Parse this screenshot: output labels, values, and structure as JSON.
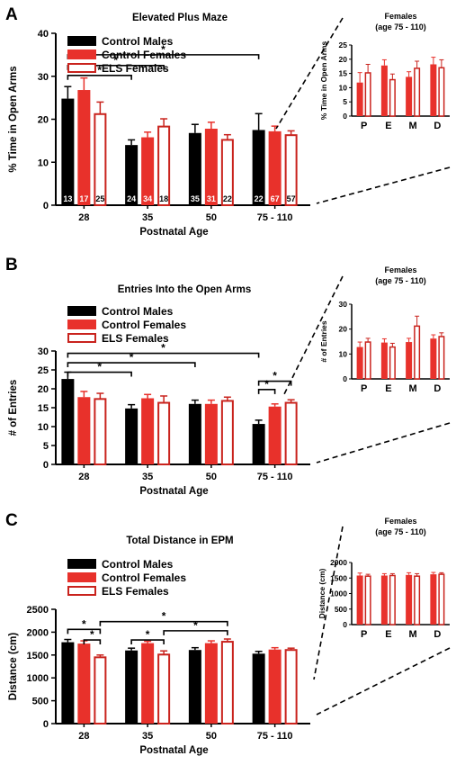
{
  "colors": {
    "control_males": "#000000",
    "control_females": "#e8312b",
    "els_females_edge": "#c9231d",
    "els_females_fill": "#ffffff",
    "axis": "#000000"
  },
  "legend": [
    "Control Males",
    "Control Females",
    "ELS Females"
  ],
  "chart_data": [
    {
      "panel": "A",
      "type": "bar",
      "title": "Elevated Plus Maze",
      "xlabel": "Postnatal Age",
      "ylabel": "% Time in Open Arms",
      "ylim": [
        0,
        40
      ],
      "yticks": [
        0,
        10,
        20,
        30,
        40
      ],
      "categories": [
        "28",
        "35",
        "50",
        "75 - 110"
      ],
      "series": [
        {
          "name": "Control Males",
          "values": [
            24.8,
            14.0,
            16.8,
            17.5
          ],
          "errors": [
            2.8,
            1.2,
            2.0,
            3.8
          ],
          "n": [
            "13",
            "24",
            "35",
            "22"
          ]
        },
        {
          "name": "Control Females",
          "values": [
            26.8,
            15.8,
            17.8,
            17.2
          ],
          "errors": [
            2.8,
            1.2,
            1.5,
            1.2
          ],
          "n": [
            "17",
            "34",
            "31",
            "67"
          ]
        },
        {
          "name": "ELS Females",
          "values": [
            21.2,
            18.3,
            15.2,
            16.3
          ],
          "errors": [
            2.8,
            1.8,
            1.2,
            1.0
          ],
          "n": [
            "25",
            "18",
            "22",
            "57"
          ]
        }
      ],
      "significance": [
        {
          "label": "*",
          "from": [
            0,
            0
          ],
          "to": [
            1,
            0
          ],
          "y": 30.2
        },
        {
          "label": "*",
          "from": [
            0,
            0
          ],
          "to": [
            1,
            2
          ],
          "y": 32.5
        },
        {
          "label": "*",
          "from": [
            0,
            0
          ],
          "to": [
            3,
            0
          ],
          "y": 35.0
        }
      ],
      "inset": {
        "title_lines": [
          "Females",
          "(age 75 - 110)"
        ],
        "ylabel": "% Time in Open Arms",
        "ylim": [
          0,
          25
        ],
        "yticks": [
          0,
          5,
          10,
          15,
          20,
          25
        ],
        "categories": [
          "P",
          "E",
          "M",
          "D"
        ],
        "series": [
          {
            "name": "Control Females",
            "values": [
              11.8,
              17.8,
              13.8,
              18.2
            ],
            "errors": [
              3.5,
              2.0,
              1.8,
              2.5
            ]
          },
          {
            "name": "ELS Females",
            "values": [
              15.2,
              12.8,
              16.8,
              17.0
            ],
            "errors": [
              3.0,
              2.0,
              2.5,
              2.8
            ]
          }
        ]
      }
    },
    {
      "panel": "B",
      "type": "bar",
      "title": "Entries Into the Open  Arms",
      "xlabel": "Postnatal Age",
      "ylabel": "# of Entries",
      "ylim": [
        0,
        30
      ],
      "yticks": [
        0,
        5,
        10,
        15,
        20,
        25,
        30
      ],
      "categories": [
        "28",
        "35",
        "50",
        "75 - 110"
      ],
      "series": [
        {
          "name": "Control Males",
          "values": [
            22.6,
            14.8,
            16.0,
            10.7
          ],
          "errors": [
            1.8,
            1.0,
            1.0,
            1.0
          ]
        },
        {
          "name": "Control Females",
          "values": [
            17.8,
            17.5,
            16.0,
            15.3
          ],
          "errors": [
            1.5,
            1.0,
            1.0,
            0.7
          ]
        },
        {
          "name": "ELS Females",
          "values": [
            17.3,
            16.3,
            16.8,
            16.3
          ],
          "errors": [
            1.5,
            1.8,
            1.0,
            0.8
          ]
        }
      ],
      "significance": [
        {
          "label": "*",
          "from": [
            0,
            0
          ],
          "to": [
            1,
            0
          ],
          "y": 24.4
        },
        {
          "label": "*",
          "from": [
            0,
            0
          ],
          "to": [
            2,
            0
          ],
          "y": 26.9
        },
        {
          "label": "*",
          "from": [
            0,
            0
          ],
          "to": [
            3,
            0
          ],
          "y": 29.4
        },
        {
          "label": "*",
          "from": [
            3,
            0
          ],
          "to": [
            3,
            1
          ],
          "y": 19.8
        },
        {
          "label": "*",
          "from": [
            3,
            0
          ],
          "to": [
            3,
            2
          ],
          "y": 22.0
        }
      ],
      "inset": {
        "title_lines": [
          "Females",
          "(age 75 - 110)"
        ],
        "ylabel": "# of Entries",
        "ylim": [
          0,
          30
        ],
        "yticks": [
          0,
          10,
          20,
          30
        ],
        "categories": [
          "P",
          "E",
          "M",
          "D"
        ],
        "series": [
          {
            "name": "Control Females",
            "values": [
              12.8,
              14.6,
              14.8,
              16.2
            ],
            "errors": [
              2.0,
              1.5,
              1.5,
              1.5
            ]
          },
          {
            "name": "ELS Females",
            "values": [
              14.8,
              12.8,
              21.2,
              17.0
            ],
            "errors": [
              1.5,
              1.5,
              4.0,
              1.5
            ]
          }
        ]
      }
    },
    {
      "panel": "C",
      "type": "bar",
      "title": "Total Distance in EPM",
      "xlabel": "Postnatal Age",
      "ylabel": "Distance (cm)",
      "ylim": [
        0,
        2500
      ],
      "yticks": [
        0,
        500,
        1000,
        1500,
        2000,
        2500
      ],
      "categories": [
        "28",
        "35",
        "50",
        "75 - 110"
      ],
      "series": [
        {
          "name": "Control Males",
          "values": [
            1780,
            1600,
            1610,
            1530
          ],
          "errors": [
            60,
            50,
            50,
            50
          ]
        },
        {
          "name": "Control Females",
          "values": [
            1750,
            1760,
            1760,
            1620
          ],
          "errors": [
            60,
            40,
            50,
            40
          ]
        },
        {
          "name": "ELS Females",
          "values": [
            1450,
            1510,
            1790,
            1610
          ],
          "errors": [
            50,
            80,
            60,
            40
          ]
        }
      ],
      "significance": [
        {
          "label": "*",
          "from": [
            0,
            0
          ],
          "to": [
            0,
            2
          ],
          "y": 2060
        },
        {
          "label": "*",
          "from": [
            0,
            1
          ],
          "to": [
            0,
            2
          ],
          "y": 1830
        },
        {
          "label": "*",
          "from": [
            0,
            2
          ],
          "to": [
            2,
            2
          ],
          "y": 2230
        },
        {
          "label": "*",
          "from": [
            1,
            0
          ],
          "to": [
            1,
            2
          ],
          "y": 1830
        },
        {
          "label": "*",
          "from": [
            1,
            2
          ],
          "to": [
            2,
            2
          ],
          "y": 2030
        }
      ],
      "inset": {
        "title_lines": [
          "Females",
          "(age 75 - 110)"
        ],
        "ylabel": "Distance (cm)",
        "ylim": [
          0,
          2000
        ],
        "yticks": [
          0,
          500,
          1000,
          1500,
          2000
        ],
        "categories": [
          "P",
          "E",
          "M",
          "D"
        ],
        "series": [
          {
            "name": "Control Females",
            "values": [
              1580,
              1580,
              1600,
              1620
            ],
            "errors": [
              80,
              60,
              70,
              60
            ]
          },
          {
            "name": "ELS Females",
            "values": [
              1560,
              1580,
              1560,
              1620
            ],
            "errors": [
              60,
              60,
              80,
              50
            ]
          }
        ]
      }
    }
  ]
}
